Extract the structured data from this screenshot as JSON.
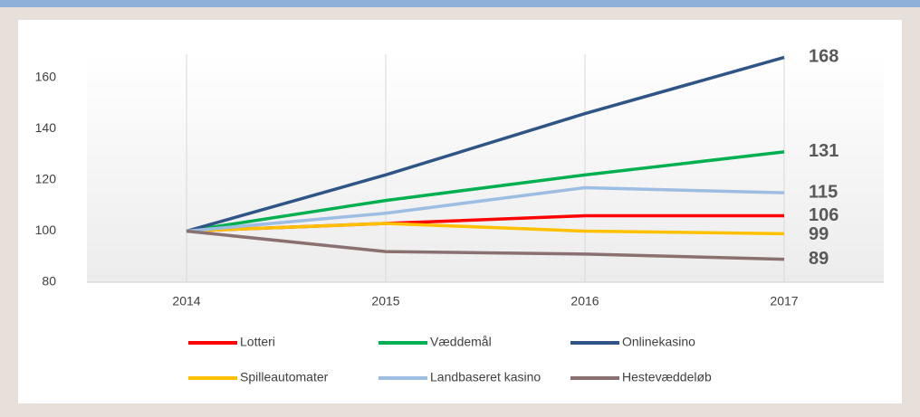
{
  "chart_data": {
    "type": "line",
    "categories": [
      "2014",
      "2015",
      "2016",
      "2017"
    ],
    "series": [
      {
        "name": "Lotteri",
        "color": "#ff0000",
        "values": [
          100,
          103,
          106,
          106
        ]
      },
      {
        "name": "Væddemål",
        "color": "#00b050",
        "values": [
          100,
          112,
          122,
          131
        ]
      },
      {
        "name": "Onlinekasino",
        "color": "#2f5587",
        "values": [
          100,
          122,
          146,
          168
        ]
      },
      {
        "name": "Spilleautomater",
        "color": "#ffc000",
        "values": [
          100,
          103,
          100,
          99
        ]
      },
      {
        "name": "Landbaseret kasino",
        "color": "#9dbde3",
        "values": [
          100,
          107,
          117,
          115
        ]
      },
      {
        "name": "Hestevæddeløb",
        "color": "#8a7070",
        "values": [
          100,
          92,
          91,
          89
        ]
      }
    ],
    "ylim": [
      80,
      170
    ],
    "yticks": [
      80,
      100,
      120,
      140,
      160
    ],
    "grid": true,
    "legend": "bottom"
  }
}
